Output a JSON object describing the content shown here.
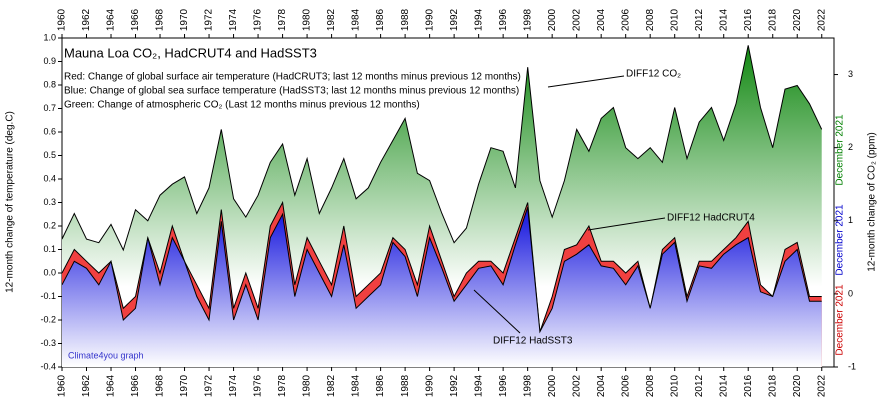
{
  "chart_data": {
    "type": "area",
    "title": "Mauna Loa CO₂, HadCRUT4 and HadSST3",
    "notes": [
      "Red: Change of global surface air temperature (HadCRUT3; last 12 months minus previous 12 months)",
      "Blue: Change of global sea surface temperature (HadSST3; last 12 months minus previous 12 months)",
      "Green: Change of atmospheric CO₂ (Last 12 months minus previous 12 months)"
    ],
    "credit": "Climate4you graph",
    "y_label": "12-month change of temperature (deg.C)",
    "y2_label": "12-month change of CO₂ (ppm)",
    "end_labels": [
      {
        "text": "December 2021",
        "color": "#008000"
      },
      {
        "text": "December 2021",
        "color": "#0000cc"
      },
      {
        "text": "December 2021",
        "color": "#cc0000"
      }
    ],
    "x": [
      1960,
      1961,
      1962,
      1963,
      1964,
      1965,
      1966,
      1967,
      1968,
      1969,
      1970,
      1971,
      1972,
      1973,
      1974,
      1975,
      1976,
      1977,
      1978,
      1979,
      1980,
      1981,
      1982,
      1983,
      1984,
      1985,
      1986,
      1987,
      1988,
      1989,
      1990,
      1991,
      1992,
      1993,
      1994,
      1995,
      1996,
      1997,
      1998,
      1999,
      2000,
      2001,
      2002,
      2003,
      2004,
      2005,
      2006,
      2007,
      2008,
      2009,
      2010,
      2011,
      2012,
      2013,
      2014,
      2015,
      2016,
      2017,
      2018,
      2019,
      2020,
      2021,
      2022
    ],
    "series": [
      {
        "name": "DIFF12 CO₂",
        "color": "#1e8c1e",
        "axis": "y2",
        "values": [
          0.75,
          1.1,
          0.75,
          0.7,
          0.95,
          0.6,
          1.15,
          1.0,
          1.35,
          1.5,
          1.6,
          1.1,
          1.45,
          2.25,
          1.3,
          1.05,
          1.35,
          1.8,
          2.05,
          1.35,
          1.85,
          1.1,
          1.45,
          1.85,
          1.3,
          1.45,
          1.8,
          2.1,
          2.4,
          1.65,
          1.55,
          1.1,
          0.7,
          0.9,
          1.5,
          2.0,
          1.95,
          1.45,
          3.1,
          1.55,
          1.05,
          1.55,
          2.25,
          1.95,
          2.4,
          2.55,
          2.0,
          1.85,
          2.0,
          1.8,
          2.55,
          1.85,
          2.35,
          2.55,
          2.1,
          2.6,
          3.4,
          2.55,
          2.0,
          2.8,
          2.85,
          2.6,
          2.25
        ]
      },
      {
        "name": "DIFF12 HadCRUT4",
        "color": "#ee3333",
        "axis": "y",
        "values": [
          0.0,
          0.1,
          0.05,
          0.0,
          0.05,
          -0.15,
          -0.1,
          0.15,
          0.0,
          0.2,
          0.05,
          -0.05,
          -0.15,
          0.27,
          -0.15,
          0.0,
          -0.15,
          0.2,
          0.3,
          -0.05,
          0.15,
          0.05,
          -0.05,
          0.2,
          -0.1,
          -0.05,
          0.0,
          0.15,
          0.1,
          -0.05,
          0.2,
          0.05,
          -0.1,
          0.0,
          0.05,
          0.05,
          0.0,
          0.15,
          0.3,
          -0.25,
          -0.1,
          0.1,
          0.12,
          0.2,
          0.05,
          0.05,
          0.0,
          0.05,
          -0.15,
          0.1,
          0.15,
          -0.1,
          0.05,
          0.05,
          0.1,
          0.15,
          0.22,
          -0.05,
          -0.1,
          0.1,
          0.13,
          -0.1,
          -0.1
        ]
      },
      {
        "name": "DIFF12 HadSST3",
        "color": "#2222dd",
        "axis": "y",
        "values": [
          -0.05,
          0.05,
          0.02,
          -0.05,
          0.05,
          -0.2,
          -0.15,
          0.15,
          -0.05,
          0.15,
          0.05,
          -0.1,
          -0.2,
          0.22,
          -0.2,
          -0.05,
          -0.2,
          0.15,
          0.25,
          -0.1,
          0.1,
          0.0,
          -0.1,
          0.12,
          -0.15,
          -0.1,
          -0.05,
          0.13,
          0.07,
          -0.1,
          0.15,
          0.02,
          -0.12,
          -0.05,
          0.02,
          0.03,
          -0.05,
          0.12,
          0.28,
          -0.25,
          -0.15,
          0.05,
          0.08,
          0.12,
          0.03,
          0.02,
          -0.05,
          0.03,
          -0.15,
          0.08,
          0.13,
          -0.12,
          0.03,
          0.02,
          0.08,
          0.12,
          0.15,
          -0.08,
          -0.1,
          0.05,
          0.1,
          -0.12,
          -0.12
        ]
      }
    ],
    "xlim": [
      1960,
      2023
    ],
    "xticks": [
      1960,
      1962,
      1964,
      1966,
      1968,
      1970,
      1972,
      1974,
      1976,
      1978,
      1980,
      1982,
      1984,
      1986,
      1988,
      1990,
      1992,
      1994,
      1996,
      1998,
      2000,
      2002,
      2004,
      2006,
      2008,
      2010,
      2012,
      2014,
      2016,
      2018,
      2020,
      2022
    ],
    "ylim": [
      -0.4,
      1.0
    ],
    "yticks": [
      -0.4,
      -0.3,
      -0.2,
      -0.1,
      {
        "value": 0,
        "label": "0.0"
      },
      0.1,
      0.2,
      0.3,
      0.4,
      0.5,
      0.6,
      0.7,
      0.8,
      0.9,
      {
        "value": 1,
        "label": "1.0"
      }
    ],
    "y2lim": [
      -1,
      3.5
    ],
    "y2ticks": [
      -1,
      0,
      1,
      2,
      3
    ]
  }
}
